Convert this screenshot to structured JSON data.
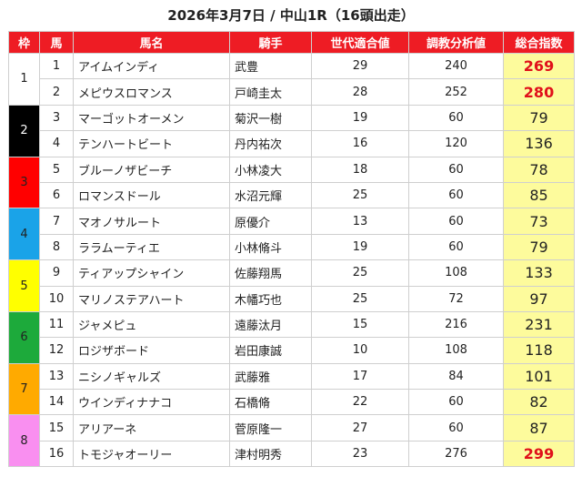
{
  "title": "2026年3月7日 / 中山1R（16頭出走）",
  "headers": [
    "枠",
    "馬",
    "馬名",
    "騎手",
    "世代適合値",
    "調教分析値",
    "総合指数"
  ],
  "wakus": [
    {
      "num": "1",
      "bg": "#ffffff",
      "fg": "#222222"
    },
    {
      "num": "2",
      "bg": "#000000",
      "fg": "#ffffff"
    },
    {
      "num": "3",
      "bg": "#ff0000",
      "fg": "#222222"
    },
    {
      "num": "4",
      "bg": "#1aa3e8",
      "fg": "#222222"
    },
    {
      "num": "5",
      "bg": "#ffff00",
      "fg": "#222222"
    },
    {
      "num": "6",
      "bg": "#1daa3b",
      "fg": "#222222"
    },
    {
      "num": "7",
      "bg": "#ffaa00",
      "fg": "#222222"
    },
    {
      "num": "8",
      "bg": "#f98ff0",
      "fg": "#222222"
    }
  ],
  "rows": [
    {
      "no": "1",
      "name": "アイムインディ",
      "jockey": "武豊",
      "gen": "29",
      "train": "240",
      "score": "269",
      "hot": true
    },
    {
      "no": "2",
      "name": "メピウスロマンス",
      "jockey": "戸崎圭太",
      "gen": "28",
      "train": "252",
      "score": "280",
      "hot": true
    },
    {
      "no": "3",
      "name": "マーゴットオーメン",
      "jockey": "菊沢一樹",
      "gen": "19",
      "train": "60",
      "score": "79",
      "hot": false
    },
    {
      "no": "4",
      "name": "テンハートビート",
      "jockey": "丹内祐次",
      "gen": "16",
      "train": "120",
      "score": "136",
      "hot": false
    },
    {
      "no": "5",
      "name": "ブルーノザビーチ",
      "jockey": "小林凌大",
      "gen": "18",
      "train": "60",
      "score": "78",
      "hot": false
    },
    {
      "no": "6",
      "name": "ロマンスドール",
      "jockey": "水沼元輝",
      "gen": "25",
      "train": "60",
      "score": "85",
      "hot": false
    },
    {
      "no": "7",
      "name": "マオノサルート",
      "jockey": "原優介",
      "gen": "13",
      "train": "60",
      "score": "73",
      "hot": false
    },
    {
      "no": "8",
      "name": "ララムーティエ",
      "jockey": "小林脩斗",
      "gen": "19",
      "train": "60",
      "score": "79",
      "hot": false
    },
    {
      "no": "9",
      "name": "ティアップシャイン",
      "jockey": "佐藤翔馬",
      "gen": "25",
      "train": "108",
      "score": "133",
      "hot": false
    },
    {
      "no": "10",
      "name": "マリノステアハート",
      "jockey": "木幡巧也",
      "gen": "25",
      "train": "72",
      "score": "97",
      "hot": false
    },
    {
      "no": "11",
      "name": "ジャメピュ",
      "jockey": "遠藤汰月",
      "gen": "15",
      "train": "216",
      "score": "231",
      "hot": false
    },
    {
      "no": "12",
      "name": "ロジザボード",
      "jockey": "岩田康誠",
      "gen": "10",
      "train": "108",
      "score": "118",
      "hot": false
    },
    {
      "no": "13",
      "name": "ニシノギャルズ",
      "jockey": "武藤雅",
      "gen": "17",
      "train": "84",
      "score": "101",
      "hot": false
    },
    {
      "no": "14",
      "name": "ウインディナナコ",
      "jockey": "石橋脩",
      "gen": "22",
      "train": "60",
      "score": "82",
      "hot": false
    },
    {
      "no": "15",
      "name": "アリアーネ",
      "jockey": "菅原隆一",
      "gen": "27",
      "train": "60",
      "score": "87",
      "hot": false
    },
    {
      "no": "16",
      "name": "トモジャオーリー",
      "jockey": "津村明秀",
      "gen": "23",
      "train": "276",
      "score": "299",
      "hot": true
    }
  ]
}
